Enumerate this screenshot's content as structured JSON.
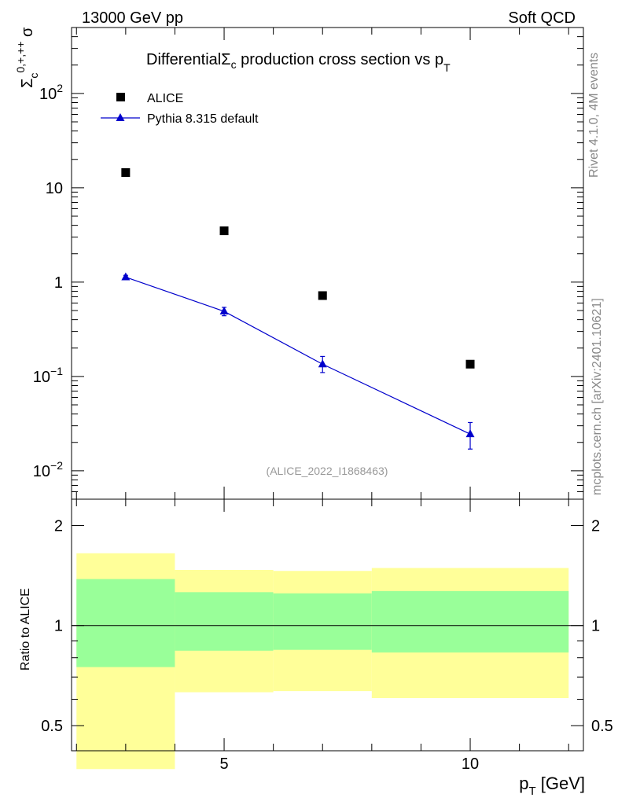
{
  "header": {
    "left": "13000 GeV pp",
    "right": "Soft QCD"
  },
  "side": {
    "rivet": "Rivet 4.1.0,  4M events",
    "mcplots": "mcplots.cern.ch [arXiv:2401.10621]"
  },
  "chart_data": [
    {
      "type": "scatter",
      "title": {
        "pre": "Differential",
        "sigma": "Σ",
        "sub": "c",
        "post": " production cross section vs p",
        "post_sub": "T"
      },
      "ylabel": {
        "sigma": "Σ",
        "sub": "c",
        "sup": "0,+,++",
        "post": " σ"
      },
      "xlabel": {
        "main": "p",
        "sub": "T",
        "unit": " [GeV]"
      },
      "yscale": "log",
      "xlim": [
        1.9,
        12.3
      ],
      "ylim": [
        0.005,
        500
      ],
      "yticks": [
        {
          "value": 0.01,
          "base": "10",
          "exp": "−2"
        },
        {
          "value": 0.1,
          "base": "10",
          "exp": "−1"
        },
        {
          "value": 1,
          "base": "1",
          "exp": ""
        },
        {
          "value": 10,
          "base": "10",
          "exp": ""
        },
        {
          "value": 100,
          "base": "10",
          "exp": "2"
        }
      ],
      "watermark": "(ALICE_2022_I1868463)",
      "legend_position": "top-left",
      "series": [
        {
          "name": "ALICE",
          "marker": "square",
          "color": "#000000",
          "x": [
            3,
            5,
            7,
            10
          ],
          "values": [
            14.5,
            3.5,
            0.72,
            0.135
          ]
        },
        {
          "name": "Pythia 8.315 default",
          "marker": "triangle",
          "color": "#0000cc",
          "x": [
            3,
            5,
            7,
            10
          ],
          "values": [
            1.13,
            0.49,
            0.135,
            0.0245
          ],
          "err_low": [
            0.05,
            0.05,
            0.025,
            0.0075
          ],
          "err_high": [
            0.05,
            0.05,
            0.028,
            0.008
          ]
        }
      ]
    },
    {
      "type": "bar",
      "ylabel": "Ratio to ALICE",
      "yscale": "log",
      "xlim": [
        1.9,
        12.3
      ],
      "ylim": [
        0.42,
        2.4
      ],
      "reference": 1,
      "yticks": [
        {
          "value": 0.5,
          "label": "0.5"
        },
        {
          "value": 1,
          "label": "1"
        },
        {
          "value": 2,
          "label": "2"
        }
      ],
      "xticks": [
        {
          "value": 5,
          "label": "5"
        },
        {
          "value": 10,
          "label": "10"
        }
      ],
      "bands": [
        {
          "x0": 2,
          "x1": 4,
          "inner": [
            0.75,
            1.38
          ],
          "outer": [
            0.37,
            1.65
          ]
        },
        {
          "x0": 4,
          "x1": 6,
          "inner": [
            0.84,
            1.26
          ],
          "outer": [
            0.63,
            1.47
          ]
        },
        {
          "x0": 6,
          "x1": 8,
          "inner": [
            0.845,
            1.25
          ],
          "outer": [
            0.635,
            1.46
          ]
        },
        {
          "x0": 8,
          "x1": 12,
          "inner": [
            0.83,
            1.27
          ],
          "outer": [
            0.605,
            1.49
          ]
        }
      ],
      "colors": {
        "inner": "#99ff99",
        "outer": "#ffff99"
      }
    }
  ]
}
